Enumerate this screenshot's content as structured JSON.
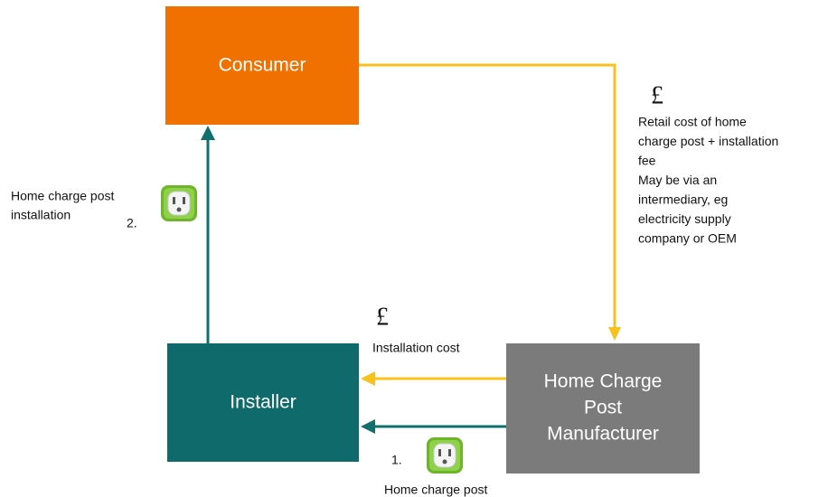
{
  "nodes": [
    {
      "label": "Consumer"
    },
    {
      "label": "Installer"
    },
    {
      "label": [
        "Home Charge",
        "Post",
        "Manufacturer"
      ]
    }
  ],
  "edges": [
    {
      "symbol": "£",
      "label": [
        "Retail cost of home",
        "charge post + installation",
        "fee",
        "May be via an",
        "intermediary, eg",
        "electricity supply",
        "company or OEM"
      ]
    },
    {
      "number": "2.",
      "label": [
        "Home charge post",
        "installation"
      ]
    },
    {
      "symbol": "£",
      "label": "Installation cost"
    },
    {
      "number": "1.",
      "label": "Home charge post"
    }
  ]
}
